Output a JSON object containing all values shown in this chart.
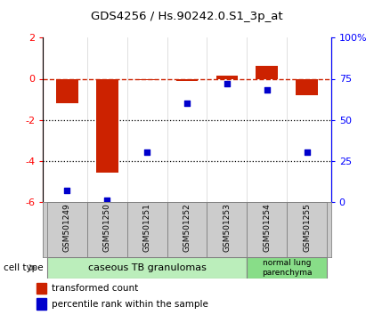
{
  "title": "GDS4256 / Hs.90242.0.S1_3p_at",
  "samples": [
    "GSM501249",
    "GSM501250",
    "GSM501251",
    "GSM501252",
    "GSM501253",
    "GSM501254",
    "GSM501255"
  ],
  "transformed_count": [
    -1.2,
    -4.6,
    -0.05,
    -0.1,
    0.15,
    0.65,
    -0.8
  ],
  "percentile_rank": [
    7,
    1,
    30,
    60,
    72,
    68,
    30
  ],
  "ylim_left": [
    -6,
    2
  ],
  "ylim_right": [
    0,
    100
  ],
  "right_ticks": [
    0,
    25,
    50,
    75,
    100
  ],
  "right_tick_labels": [
    "0",
    "25",
    "50",
    "75",
    "100%"
  ],
  "left_ticks": [
    -6,
    -4,
    -2,
    0,
    2
  ],
  "bar_color": "#CC2200",
  "dot_color": "#0000CC",
  "dashed_line_color": "#CC2200",
  "cell_type_group1_label": "caseous TB granulomas",
  "cell_type_group2_label": "normal lung\nparenchyma",
  "cell_type_group1_color": "#BBEEBB",
  "cell_type_group2_color": "#88DD88",
  "legend_bar_label": "transformed count",
  "legend_dot_label": "percentile rank within the sample",
  "cell_type_label": "cell type",
  "bg_color": "#FFFFFF",
  "grid_color": "#000000",
  "sample_box_color": "#CCCCCC"
}
